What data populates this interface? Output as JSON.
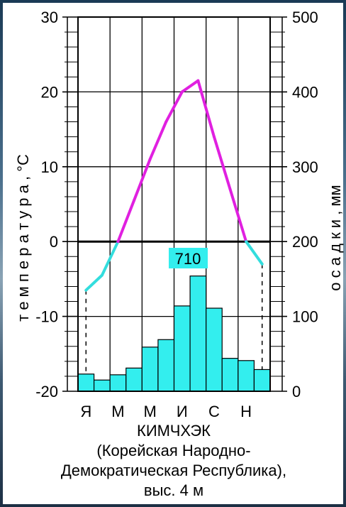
{
  "chart_data": {
    "type": "bar+line",
    "station": "КИМЧХЭК",
    "caption_lines": [
      "(Корейская  Народно-",
      "Демократическая  Республика),",
      "выс. 4 м"
    ],
    "annual_precipitation": "710",
    "months": [
      "Я",
      "",
      "М",
      "",
      "М",
      "",
      "И",
      "",
      "С",
      "",
      "Н",
      ""
    ],
    "month_labels": [
      "Я",
      "М",
      "М",
      "И",
      "С",
      "Н"
    ],
    "temperature": {
      "label": "т е м п е р а т у р а ,   °С",
      "unit": "°С",
      "ylim": [
        -20,
        30
      ],
      "ticks": [
        "30",
        "20",
        "10",
        "0",
        "-10",
        "-20"
      ],
      "values": [
        -6.5,
        -4.5,
        0,
        5.5,
        11,
        16,
        20,
        21.5,
        14,
        7,
        0,
        -3
      ],
      "color_positive": "#e020e0",
      "color_negative": "#33dddd"
    },
    "precipitation": {
      "label": "о с а д к и ,   мм",
      "unit": "мм",
      "ylim": [
        0,
        500
      ],
      "ticks": [
        "500",
        "400",
        "300",
        "200",
        "100",
        "0"
      ],
      "values": [
        23,
        15,
        22,
        31,
        59,
        69,
        114,
        154,
        111,
        44,
        41,
        29
      ],
      "color": "#33eeee"
    }
  }
}
